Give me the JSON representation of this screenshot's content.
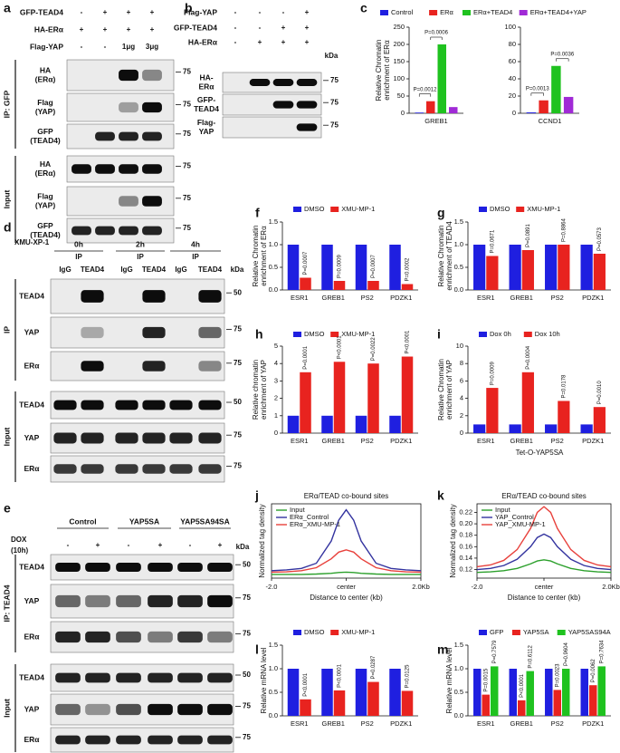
{
  "blots": [
    {
      "panel": "a",
      "header_rows": [
        {
          "label": "GFP-TEAD4",
          "cells": [
            "-",
            "+",
            "+",
            "+"
          ]
        },
        {
          "label": "HA-ERα",
          "cells": [
            "+",
            "+",
            "+",
            "+"
          ]
        },
        {
          "label": "Flag-YAP",
          "cells": [
            "-",
            "-",
            "1μg",
            "3μg"
          ]
        }
      ],
      "groups": [
        {
          "label": "IP: GFP",
          "strips": [
            {
              "label": [
                "HA",
                "(ERα)"
              ],
              "kda": 75
            },
            {
              "label": [
                "Flag",
                "(YAP)"
              ],
              "kda": 75
            },
            {
              "label": [
                "GFP",
                "(TEAD4)"
              ],
              "kda": 75
            }
          ]
        },
        {
          "label": "Input",
          "strips": [
            {
              "label": [
                "HA",
                "(ERα)"
              ],
              "kda": 75
            },
            {
              "label": [
                "Flag",
                "(YAP)"
              ],
              "kda": 75
            },
            {
              "label": [
                "GFP",
                "(TEAD4)"
              ],
              "kda": 75
            }
          ]
        }
      ]
    },
    {
      "panel": "b",
      "kda_label": "kDa",
      "header_rows": [
        {
          "label": "Flag-YAP",
          "cells": [
            "-",
            "-",
            "-",
            "+"
          ]
        },
        {
          "label": "GFP-TEAD4",
          "cells": [
            "-",
            "-",
            "+",
            "+"
          ]
        },
        {
          "label": "HA-ERα",
          "cells": [
            "-",
            "+",
            "+",
            "+"
          ]
        }
      ],
      "groups": [
        {
          "strips": [
            {
              "label": [
                "HA-",
                "ERα"
              ],
              "kda": 75
            },
            {
              "label": [
                "GFP-",
                "TEAD4"
              ],
              "kda": 75
            },
            {
              "label": [
                "Flag-",
                "YAP"
              ],
              "kda": 75
            }
          ]
        }
      ]
    },
    {
      "panel": "d",
      "treatment": "XMU-XP-1",
      "kda_label": "kDa",
      "conditions": [
        {
          "label": "0h",
          "sub": "IP"
        },
        {
          "label": "2h",
          "sub": "IP"
        },
        {
          "label": "4h",
          "sub": "IP"
        }
      ],
      "lanes": [
        "IgG",
        "TEAD4",
        "IgG",
        "TEAD4",
        "IgG",
        "TEAD4"
      ],
      "groups": [
        {
          "label": "IP",
          "strips": [
            {
              "label": [
                "TEAD4"
              ],
              "kda": 50
            },
            {
              "label": [
                "YAP"
              ],
              "kda": 75
            },
            {
              "label": [
                "ERα"
              ],
              "kda": 75
            }
          ]
        },
        {
          "label": "Input",
          "strips": [
            {
              "label": [
                "TEAD4"
              ],
              "kda": 50
            },
            {
              "label": [
                "YAP"
              ],
              "kda": 75
            },
            {
              "label": [
                "ERα"
              ],
              "kda": 75
            }
          ]
        }
      ]
    },
    {
      "panel": "e",
      "treatment": [
        "DOX",
        "(10h)"
      ],
      "kda_label": "kDa",
      "conditions": [
        {
          "label": "Control"
        },
        {
          "label": "YAP5SA"
        },
        {
          "label": "YAP5SA94SA"
        }
      ],
      "header_rows": [
        {
          "cells": [
            "-",
            "+",
            "-",
            "+",
            "-",
            "+"
          ]
        }
      ],
      "groups": [
        {
          "label": "IP: TEAD4",
          "strips": [
            {
              "label": [
                "TEAD4"
              ],
              "kda": 50
            },
            {
              "label": [
                "YAP"
              ],
              "kda": 75
            },
            {
              "label": [
                "ERα"
              ],
              "kda": 75
            }
          ]
        },
        {
          "label": "Input",
          "strips": [
            {
              "label": [
                "TEAD4"
              ],
              "kda": 50
            },
            {
              "label": [
                "YAP"
              ],
              "kda": 75
            },
            {
              "label": [
                "ERα"
              ],
              "kda": 75
            }
          ]
        }
      ]
    }
  ],
  "chart_data": [
    {
      "panel": "c",
      "type": "grouped",
      "ylabel": [
        "Relative Chromatin",
        "enrichment of ERα"
      ],
      "series": [
        {
          "name": "Control",
          "color": "#1f1fe0"
        },
        {
          "name": "ERα",
          "color": "#e8231f"
        },
        {
          "name": "ERα+TEAD4",
          "color": "#1fc21f"
        },
        {
          "name": "ERα+TEAD4+YAP",
          "color": "#a02ad6"
        }
      ],
      "subplots": [
        {
          "category": "GREB1",
          "values": [
            2,
            35,
            200,
            18
          ],
          "annotations": [
            null,
            "P=0.0012",
            "P=0.0006",
            null
          ],
          "ylim": [
            0,
            250
          ],
          "yticks": [
            0,
            50,
            100,
            150,
            200,
            250
          ]
        },
        {
          "category": "CCND1",
          "values": [
            1,
            15,
            55,
            19
          ],
          "annotations": [
            null,
            "P=0.0013",
            null,
            "P=0.0036"
          ],
          "ylim": [
            0,
            100
          ],
          "yticks": [
            0,
            20,
            40,
            60,
            80,
            100
          ]
        }
      ]
    },
    {
      "panel": "f",
      "type": "bar",
      "ylabel": [
        "Relative Chromatin",
        "enrichment of ERα"
      ],
      "categories": [
        "ESR1",
        "GREB1",
        "PS2",
        "PDZK1"
      ],
      "series": [
        {
          "name": "DMSO",
          "color": "#1f1fe0",
          "values": [
            1,
            1,
            1,
            1
          ]
        },
        {
          "name": "XMU-MP-1",
          "color": "#e8231f",
          "values": [
            0.27,
            0.2,
            0.2,
            0.13
          ],
          "annotations": [
            "P=0.0007",
            "P=0.0009",
            "P=0.0007",
            "P=0.0002"
          ]
        }
      ],
      "ylim": [
        0,
        1.5
      ],
      "yticks": [
        {
          "value": 0,
          "label": "0.0"
        },
        0.5,
        {
          "value": 1,
          "label": "1.0"
        },
        1.5
      ]
    },
    {
      "panel": "g",
      "type": "bar",
      "ylabel": [
        "Relative Chromatin",
        "enrichment of TEAD4"
      ],
      "categories": [
        "ESR1",
        "GREB1",
        "PS2",
        "PDZK1"
      ],
      "series": [
        {
          "name": "DMSO",
          "color": "#1f1fe0",
          "values": [
            1,
            1,
            1,
            1
          ]
        },
        {
          "name": "XMU-MP-1",
          "color": "#e8231f",
          "values": [
            0.75,
            0.88,
            1.0,
            0.8
          ],
          "annotations": [
            "P=0.0671",
            "P=0.0891",
            "P=0.8864",
            "P=0.0573"
          ]
        }
      ],
      "ylim": [
        0,
        1.5
      ],
      "yticks": [
        {
          "value": 0,
          "label": "0.0"
        },
        0.5,
        {
          "value": 1,
          "label": "1.0"
        },
        1.5
      ]
    },
    {
      "panel": "h",
      "type": "bar",
      "ylabel": [
        "Relative chromatin",
        "enrichment of YAP"
      ],
      "categories": [
        "ESR1",
        "GREB1",
        "PS2",
        "PDZK1"
      ],
      "series": [
        {
          "name": "DMSO",
          "color": "#1f1fe0",
          "values": [
            1,
            1,
            1,
            1
          ]
        },
        {
          "name": "XMU-MP-1",
          "color": "#e8231f",
          "values": [
            3.5,
            4.1,
            4.0,
            4.4
          ],
          "annotations": [
            "P=0.0001",
            "P<0.0001",
            "P=0.0022",
            "P<0.0001"
          ]
        }
      ],
      "ylim": [
        0,
        5
      ],
      "yticks": [
        0,
        1,
        2,
        3,
        4,
        5
      ]
    },
    {
      "panel": "i",
      "type": "bar",
      "ylabel": [
        "Relative Chromatin",
        "enrichment of YAP"
      ],
      "xlabel": "Tet-O-YAP5SA",
      "categories": [
        "ESR1",
        "GREB1",
        "PS2",
        "PDZK1"
      ],
      "series": [
        {
          "name": "Dox 0h",
          "color": "#1f1fe0",
          "values": [
            1,
            1,
            1,
            1
          ]
        },
        {
          "name": "Dox 10h",
          "color": "#e8231f",
          "values": [
            5.2,
            7.0,
            3.7,
            3.0
          ],
          "annotations": [
            "P=0.0009",
            "P=0.0004",
            "P=0.0178",
            "P=0.0010"
          ]
        }
      ],
      "ylim": [
        0,
        10
      ],
      "yticks": [
        0,
        2,
        4,
        6,
        8,
        10
      ]
    },
    {
      "panel": "j",
      "type": "line",
      "title": "ERα/TEAD co-bound sites",
      "ylabel": [
        "Normalized tag density"
      ],
      "xlabel": "Distance to center (kb)",
      "x": [
        -2,
        -1.6,
        -1.2,
        -0.8,
        -0.4,
        -0.2,
        0,
        0.2,
        0.4,
        0.8,
        1.2,
        1.6,
        2
      ],
      "xlim": [
        -2,
        2
      ],
      "xticks": [
        {
          "value": -2,
          "label": "-2.0"
        },
        {
          "value": 0,
          "label": "center"
        },
        {
          "value": 2,
          "label": "2.0Kb"
        }
      ],
      "ylim": [
        0,
        1
      ],
      "series": [
        {
          "name": "Input",
          "color": "#2ca02c",
          "values": [
            0.05,
            0.05,
            0.05,
            0.055,
            0.065,
            0.075,
            0.08,
            0.075,
            0.065,
            0.055,
            0.05,
            0.05,
            0.05
          ]
        },
        {
          "name": "ERα_Control",
          "color": "#33339f",
          "values": [
            0.1,
            0.11,
            0.13,
            0.2,
            0.5,
            0.78,
            0.92,
            0.78,
            0.5,
            0.2,
            0.13,
            0.11,
            0.1
          ]
        },
        {
          "name": "ERα_XMU-MP-1",
          "color": "#e8413c",
          "values": [
            0.08,
            0.085,
            0.1,
            0.14,
            0.26,
            0.35,
            0.38,
            0.35,
            0.26,
            0.14,
            0.1,
            0.085,
            0.08
          ]
        }
      ]
    },
    {
      "panel": "k",
      "type": "line",
      "title": "ERα/TEAD co-bound sites",
      "ylabel": [
        "Normalized tag density"
      ],
      "xlabel": "Distance to center (kb)",
      "x": [
        -2,
        -1.6,
        -1.2,
        -0.8,
        -0.4,
        -0.2,
        0,
        0.2,
        0.4,
        0.8,
        1.2,
        1.6,
        2
      ],
      "xlim": [
        -2,
        2
      ],
      "xticks": [
        {
          "value": -2,
          "label": "-2.0"
        },
        {
          "value": 0,
          "label": "center"
        },
        {
          "value": 2,
          "label": "2.0Kb"
        }
      ],
      "ylim": [
        0.105,
        0.235
      ],
      "yticks": [
        0.12,
        0.14,
        0.16,
        0.18,
        {
          "value": 0.2,
          "label": "0.20"
        },
        0.22
      ],
      "series": [
        {
          "name": "Input",
          "color": "#2ca02c",
          "values": [
            0.115,
            0.116,
            0.118,
            0.122,
            0.13,
            0.135,
            0.137,
            0.135,
            0.13,
            0.122,
            0.118,
            0.116,
            0.115
          ]
        },
        {
          "name": "YAP_Control",
          "color": "#33339f",
          "values": [
            0.12,
            0.122,
            0.127,
            0.138,
            0.16,
            0.176,
            0.182,
            0.176,
            0.16,
            0.138,
            0.127,
            0.122,
            0.12
          ]
        },
        {
          "name": "YAP_XMU-MP-1",
          "color": "#e8413c",
          "values": [
            0.125,
            0.128,
            0.136,
            0.155,
            0.192,
            0.22,
            0.23,
            0.22,
            0.192,
            0.155,
            0.136,
            0.128,
            0.125
          ]
        }
      ]
    },
    {
      "panel": "l",
      "type": "bar",
      "ylabel": [
        "Relative mRNA level"
      ],
      "categories": [
        "ESR1",
        "GREB1",
        "PS2",
        "PDZK1"
      ],
      "series": [
        {
          "name": "DMSO",
          "color": "#1f1fe0",
          "values": [
            1,
            1,
            1,
            1
          ]
        },
        {
          "name": "XMU-MP-1",
          "color": "#e8231f",
          "values": [
            0.35,
            0.54,
            0.72,
            0.53
          ],
          "annotations": [
            "P<0.0001",
            "P<0.0001",
            "P=0.0287",
            "P=0.0125"
          ]
        }
      ],
      "ylim": [
        0,
        1.5
      ],
      "yticks": [
        {
          "value": 0,
          "label": "0.0"
        },
        0.5,
        {
          "value": 1,
          "label": "1.0"
        },
        1.5
      ]
    },
    {
      "panel": "m",
      "type": "bar",
      "ylabel": [
        "Relative mRNA level"
      ],
      "categories": [
        "ESR1",
        "GREB1",
        "PS2",
        "PDZK1"
      ],
      "series": [
        {
          "name": "GFP",
          "color": "#1f1fe0",
          "values": [
            1,
            1,
            1,
            1
          ]
        },
        {
          "name": "YAP5SA",
          "color": "#e8231f",
          "values": [
            0.45,
            0.33,
            0.55,
            0.65
          ],
          "annotations": [
            "P=0.0015",
            "P<0.0001",
            "P=0.0023",
            "P=0.0062"
          ]
        },
        {
          "name": "YAP5SAS94A",
          "color": "#1fc21f",
          "values": [
            1.05,
            0.95,
            1.0,
            1.05
          ],
          "annotations": [
            "P=0.7579",
            "P=0.6112",
            "P=0.9604",
            "P=0.7634"
          ]
        }
      ],
      "ylim": [
        0,
        1.5
      ],
      "yticks": [
        {
          "value": 0,
          "label": "0.0"
        },
        0.5,
        {
          "value": 1,
          "label": "1.0"
        },
        1.5
      ]
    }
  ]
}
